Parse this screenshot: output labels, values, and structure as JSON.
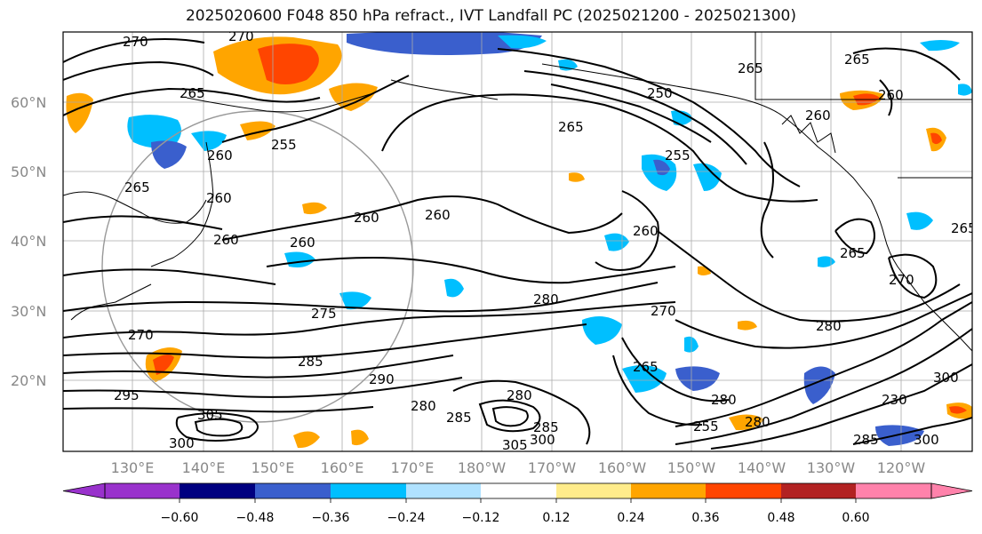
{
  "title": "2025020600 F048 850 hPa refract., IVT Landfall PC (2025021200 - 2025021300)",
  "lat_labels": [
    "60°N",
    "50°N",
    "40°N",
    "30°N",
    "20°N"
  ],
  "lon_labels": [
    "130°E",
    "140°E",
    "150°E",
    "160°E",
    "170°E",
    "180°W",
    "170°W",
    "160°W",
    "150°W",
    "140°W",
    "130°W",
    "120°W"
  ],
  "colorbar": {
    "ticks": [
      "−0.60",
      "−0.48",
      "−0.36",
      "−0.24",
      "−0.12",
      "0.12",
      "0.24",
      "0.36",
      "0.48",
      "0.60"
    ],
    "colors": [
      "#9932cc",
      "#000080",
      "#3a5fcd",
      "#00bfff",
      "#b0e2ff",
      "#ffffff",
      "#ffec8b",
      "#ffa500",
      "#ff4500",
      "#b22222",
      "#ff82ab"
    ]
  },
  "contour_labels": [
    "270",
    "270",
    "265",
    "265",
    "255",
    "260",
    "265",
    "260",
    "260",
    "260",
    "265",
    "260",
    "250",
    "255",
    "260",
    "260",
    "265",
    "260",
    "260",
    "265",
    "280",
    "275",
    "270",
    "285",
    "290",
    "295",
    "305",
    "300",
    "280",
    "285",
    "280",
    "305",
    "300",
    "285",
    "265",
    "270",
    "280",
    "280",
    "255",
    "280",
    "300",
    "230",
    "300",
    "285",
    "265",
    "270"
  ],
  "colors": {
    "orange": "#ffa500",
    "red": "#ff4500",
    "yellow": "#ffec8b",
    "blue": "#3a5fcd",
    "cyan": "#00bfff",
    "lightblue": "#b0e2ff",
    "navy": "#000080",
    "darkred": "#b22222"
  }
}
